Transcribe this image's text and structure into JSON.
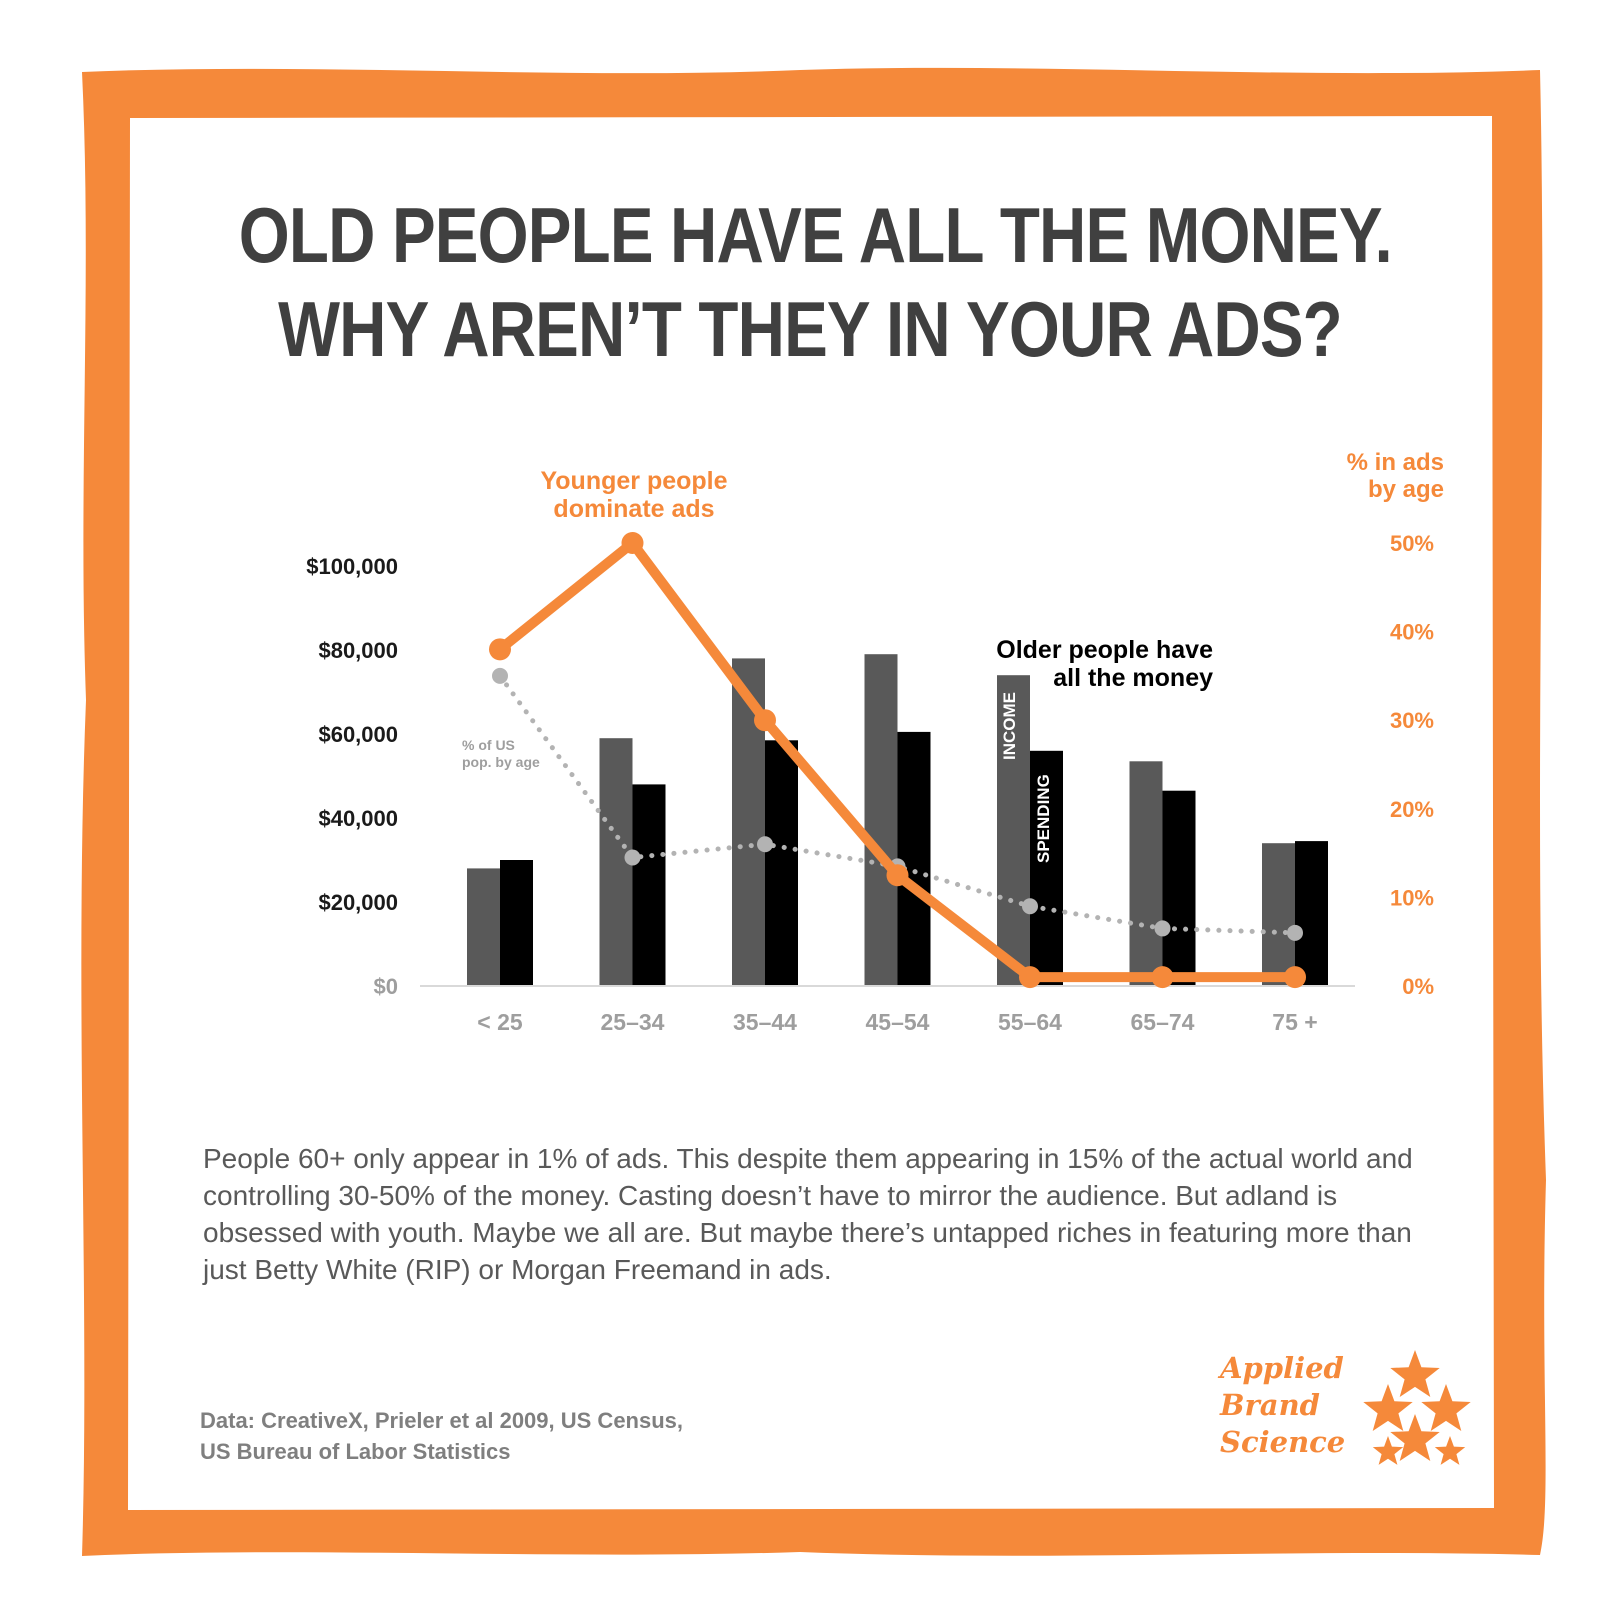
{
  "colors": {
    "orange": "#f5893a",
    "income": "#595959",
    "spending": "#000000",
    "population": "#b3b3b3",
    "title": "#404040"
  },
  "headline": {
    "line1": "OLD PEOPLE HAVE ALL THE MONEY.",
    "line2": "WHY AREN’T THEY IN YOUR ADS?"
  },
  "body_text": "People 60+ only appear in 1% of ads. This despite them appearing in 15% of the actual world and controlling 30-50% of the money. Casting doesn’t have to mirror the audience. But adland is obsessed with youth. Maybe we all are. But maybe there’s untapped riches in featuring more than just Betty White (RIP) or Morgan Freemand in ads.",
  "source": {
    "line1": "Data: CreativeX,  Prieler et al 2009, US Census,",
    "line2": "US Bureau of Labor Statistics"
  },
  "logo": {
    "line1": "Applied",
    "line2": "Brand",
    "line3": "Science",
    "icon": "stars-icon"
  },
  "chart_data": {
    "type": "bar",
    "categories": [
      "< 25",
      "25–34",
      "35–44",
      "45–54",
      "55–64",
      "65–74",
      "75 +"
    ],
    "series": [
      {
        "name": "INCOME",
        "axis": "left",
        "values": [
          28000,
          59000,
          78000,
          79000,
          74000,
          53500,
          34000
        ]
      },
      {
        "name": "SPENDING",
        "axis": "left",
        "values": [
          30000,
          48000,
          58500,
          60500,
          56000,
          46500,
          34500
        ]
      },
      {
        "name": "% of US pop. by age",
        "type": "line",
        "style": "dotted",
        "axis": "right",
        "values": [
          35,
          14.5,
          16,
          13.5,
          9,
          6.5,
          6
        ]
      },
      {
        "name": "% in ads by age",
        "type": "line",
        "axis": "right",
        "values": [
          38,
          50,
          30,
          12.5,
          1,
          1,
          1
        ]
      }
    ],
    "left_axis": {
      "range": [
        0,
        100000
      ],
      "ticks": [
        "$0",
        "$20,000",
        "$40,000",
        "$60,000",
        "$80,000",
        "$100,000"
      ]
    },
    "right_axis": {
      "label_line1": "% in ads",
      "label_line2": "by age",
      "range": [
        0,
        50
      ],
      "ticks": [
        "0%",
        "10%",
        "20%",
        "30%",
        "40%",
        "50%"
      ]
    },
    "annotations": {
      "young_line1": "Younger people",
      "young_line2": "dominate ads",
      "old_line1": "Older people have",
      "old_line2": "all the money",
      "pop_line1": "% of US",
      "pop_line2": "pop. by age"
    },
    "grid": false,
    "legend": "none"
  }
}
